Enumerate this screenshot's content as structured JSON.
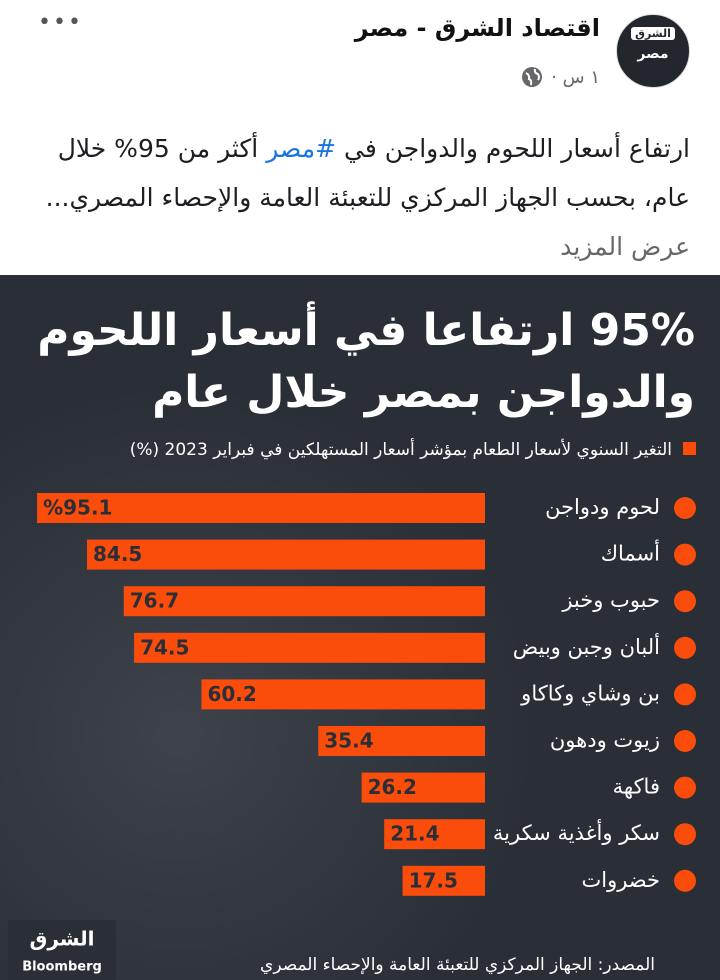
{
  "post": {
    "page_name": "اقتصاد الشرق - مصر",
    "time": "١ س ·",
    "avatar_brand": "الشرق",
    "avatar_label": "مصر",
    "menu": "•••",
    "text_start": "ارتفاع أسعار اللحوم والدواجن في",
    "hashtag": "#مصر",
    "text_end": "أكثر من 95% خلال عام، بحسب الجهاز المركزي للتعبئة العامة والإحصاء المصري...",
    "see_more": "عرض المزيد"
  },
  "chart_data": {
    "type": "bar",
    "orientation": "horizontal",
    "title_lines": [
      "95% ارتفاعا في أسعار اللحوم",
      "والدواجن بمصر خلال عام"
    ],
    "subtitle": "التغير السنوي لأسعار الطعام بمؤشر أسعار المستهلكين في فبراير 2023 (%)",
    "categories": [
      "لحوم ودواجن",
      "أسماك",
      "حبوب وخبز",
      "ألبان وجبن وبيض",
      "بن وشاي وكاكاو",
      "زيوت ودهون",
      "فاكهة",
      "سكر وأغذية سكرية",
      "خضروات"
    ],
    "values": [
      95.1,
      84.5,
      76.7,
      74.5,
      60.2,
      35.4,
      26.2,
      21.4,
      17.5
    ],
    "value_labels": [
      "%95.1",
      "84.5",
      "76.7",
      "74.5",
      "60.2",
      "35.4",
      "26.2",
      "21.4",
      "17.5"
    ],
    "color": "#fa4c0a",
    "source": "المصدر: الجهاز المركزي للتعبئة العامة والإحصاء المصري",
    "logo": [
      "الشرق",
      "Bloomberg"
    ]
  }
}
